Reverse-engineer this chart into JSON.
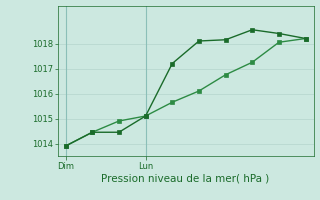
{
  "title": "",
  "xlabel": "Pression niveau de la mer( hPa )",
  "background_color": "#cce8e0",
  "grid_color": "#b8d8d0",
  "line_color1": "#1a6b2a",
  "line_color2": "#2d8b44",
  "vline_color": "#8bbfb8",
  "ylim": [
    1013.5,
    1019.5
  ],
  "yticks": [
    1014,
    1015,
    1016,
    1017,
    1018
  ],
  "series1_x": [
    0,
    1,
    2,
    3,
    4,
    5,
    6,
    7,
    8,
    9
  ],
  "series1_y": [
    1013.9,
    1014.45,
    1014.45,
    1015.1,
    1017.2,
    1018.1,
    1018.15,
    1018.55,
    1018.4,
    1018.2
  ],
  "series2_x": [
    0,
    1,
    2,
    3,
    4,
    5,
    6,
    7,
    8,
    9
  ],
  "series2_y": [
    1013.9,
    1014.45,
    1014.9,
    1015.1,
    1015.65,
    1016.1,
    1016.75,
    1017.25,
    1018.05,
    1018.2
  ],
  "vline_x": [
    0,
    3
  ],
  "vline_labels": [
    "Dim",
    "Lun"
  ],
  "xlim": [
    -0.3,
    9.3
  ],
  "marker_size": 2.5,
  "line_width": 1.0,
  "tick_labelsize": 6,
  "xlabel_fontsize": 7.5
}
